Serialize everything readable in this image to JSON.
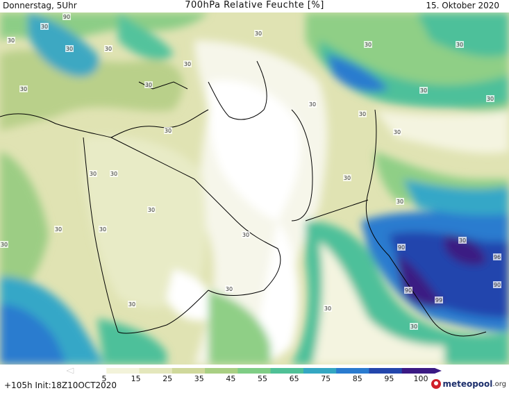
{
  "header": {
    "left": "Donnerstag, 5Uhr",
    "title": "700hPa Relative Feuchte [%]",
    "date": "15. Oktober 2020"
  },
  "colorbar": {
    "labels": [
      "5",
      "15",
      "25",
      "35",
      "45",
      "55",
      "65",
      "75",
      "85",
      "95",
      "100"
    ],
    "colors": [
      "#ffffff",
      "#f3f3da",
      "#e4e7bc",
      "#cfd89b",
      "#a9cf83",
      "#7fcd85",
      "#4fc096",
      "#34a7c2",
      "#2a7bcf",
      "#2346ac",
      "#3b1a84"
    ]
  },
  "map_labels": {
    "values": [
      "90",
      "30",
      "30",
      "30",
      "30",
      "30",
      "30",
      "30",
      "30",
      "30",
      "30",
      "30",
      "30",
      "30",
      "30",
      "30",
      "30",
      "30",
      "30",
      "30",
      "30",
      "30",
      "30",
      "30",
      "30",
      "30",
      "30",
      "96",
      "90",
      "90",
      "99",
      "90",
      "30",
      "30",
      "30",
      "30"
    ],
    "colors": {
      "dry": "#f4f4e0",
      "pale": "#e4e6b8",
      "olive": "#c9d495",
      "green": "#8fcf86",
      "teal": "#4dc09a",
      "sky": "#36a7c7",
      "blue": "#2a7bcf",
      "deep": "#2345ad",
      "violet": "#3a1b83",
      "border": "#000000"
    }
  },
  "footer": {
    "run": "+105h Init:18Z10OCT2020"
  },
  "logo": {
    "name": "meteopool",
    "domain": ".org"
  }
}
